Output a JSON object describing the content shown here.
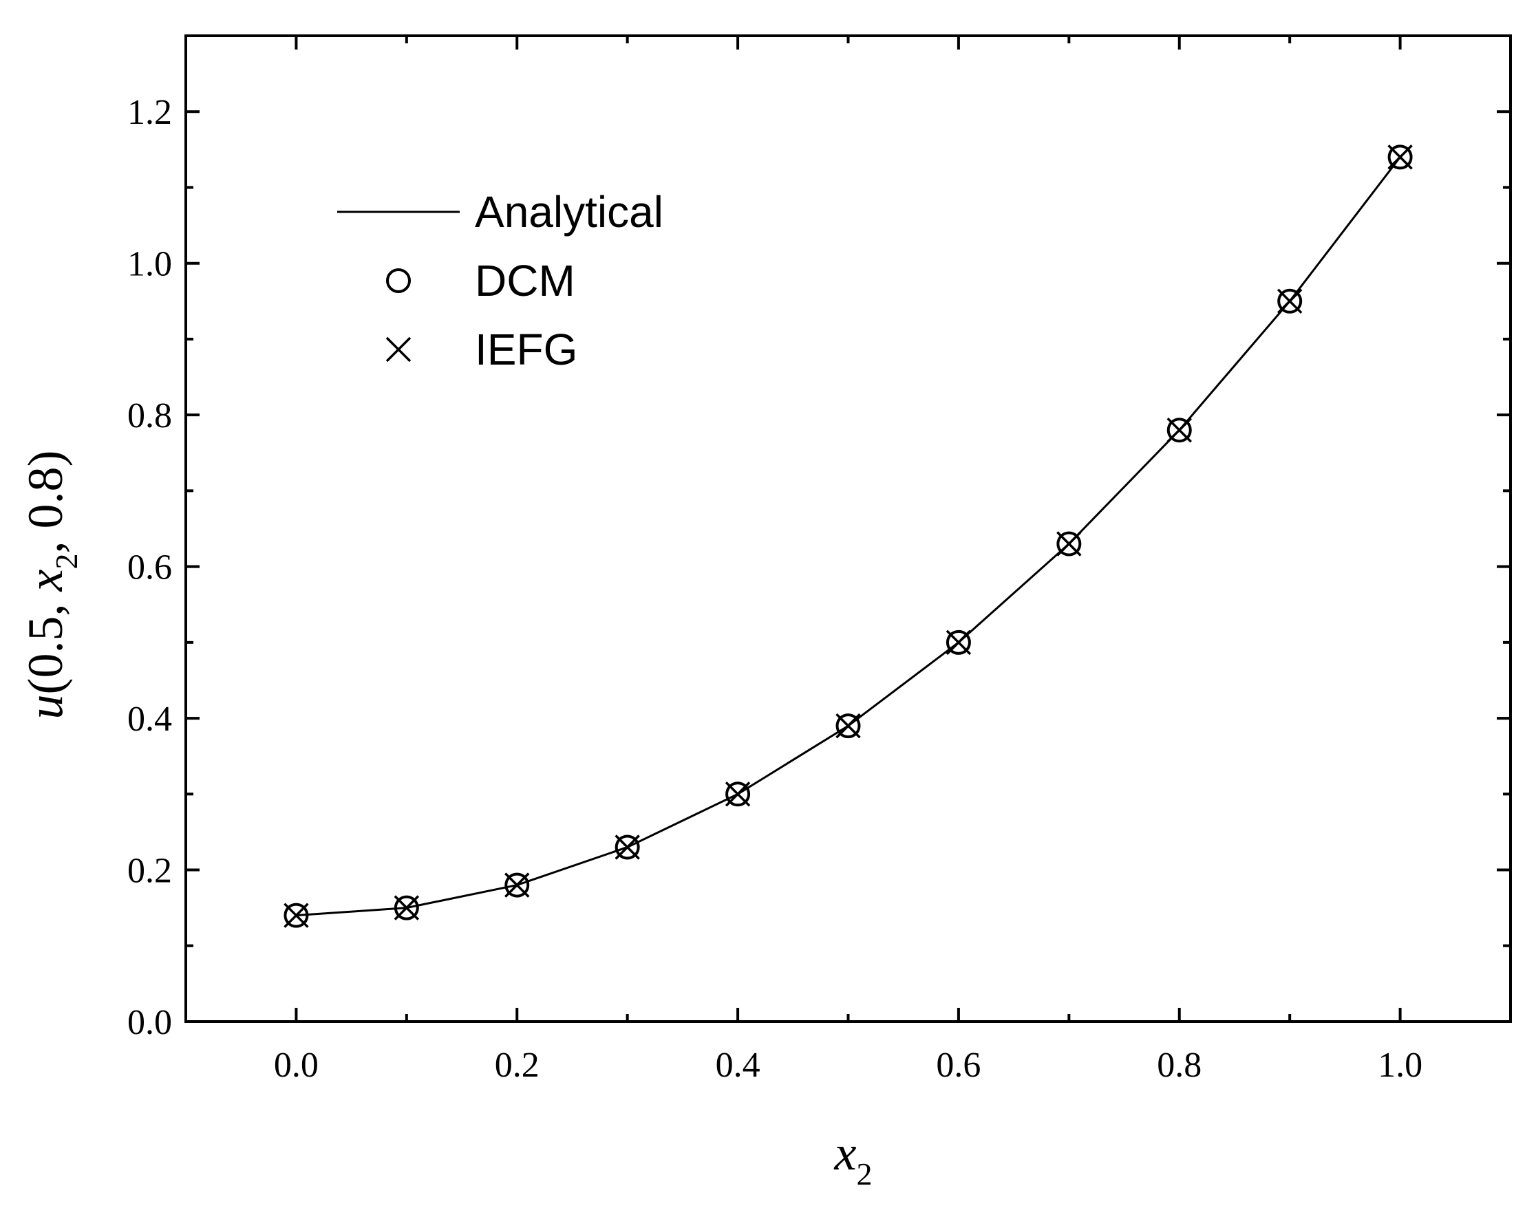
{
  "chart_data": {
    "type": "line",
    "xlabel": {
      "base": "x",
      "subscript": "2"
    },
    "ylabel": {
      "func": "u",
      "open": "(0.5, ",
      "var": "x",
      "subscript": "2",
      "close": ", 0.8)"
    },
    "xlim": [
      -0.1,
      1.1
    ],
    "ylim": [
      0.0,
      1.3
    ],
    "xticks": [
      "0.0",
      "0.2",
      "0.4",
      "0.6",
      "0.8",
      "1.0"
    ],
    "yticks": [
      "0.0",
      "0.2",
      "0.4",
      "0.6",
      "0.8",
      "1.0",
      "1.2"
    ],
    "grid": false,
    "legend_position": "top-left",
    "x": [
      0.0,
      0.1,
      0.2,
      0.3,
      0.4,
      0.5,
      0.6,
      0.7,
      0.8,
      0.9,
      1.0
    ],
    "series": [
      {
        "name": "Analytical",
        "style": "line",
        "values": [
          0.14,
          0.15,
          0.18,
          0.23,
          0.3,
          0.39,
          0.5,
          0.63,
          0.78,
          0.95,
          1.14
        ]
      },
      {
        "name": "DCM",
        "style": "circle",
        "values": [
          0.14,
          0.15,
          0.18,
          0.23,
          0.3,
          0.39,
          0.5,
          0.63,
          0.78,
          0.95,
          1.14
        ]
      },
      {
        "name": "IEFG",
        "style": "cross",
        "values": [
          0.14,
          0.15,
          0.18,
          0.23,
          0.3,
          0.39,
          0.5,
          0.63,
          0.78,
          0.95,
          1.14
        ]
      }
    ],
    "line_color": "#000000"
  }
}
